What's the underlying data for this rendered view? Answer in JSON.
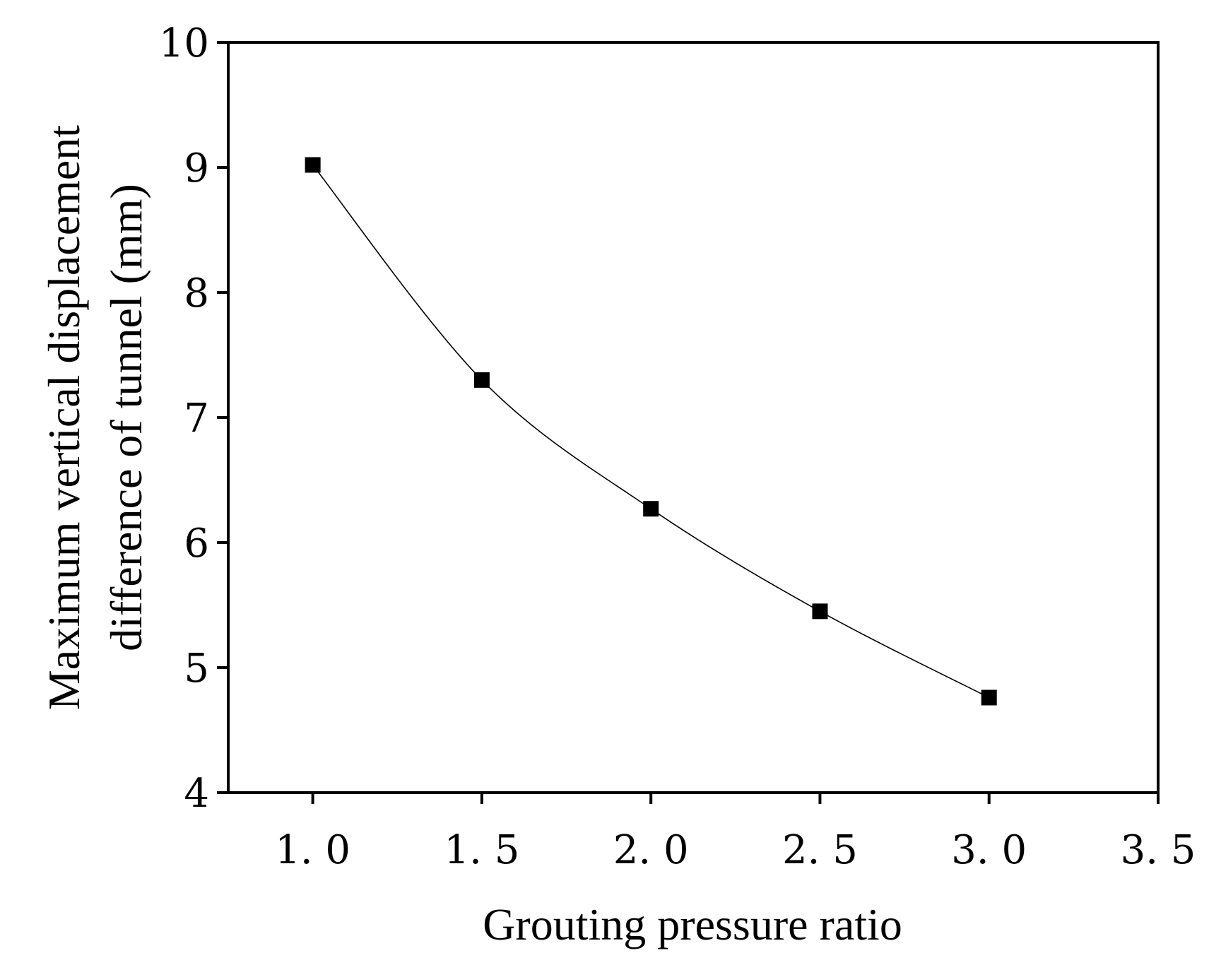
{
  "chart_data": {
    "type": "line",
    "title": "",
    "xlabel": "Grouting pressure ratio",
    "ylabel_lines": [
      "Maximum vertical displacement",
      "difference of tunnel (mm)"
    ],
    "xlim": [
      0.75,
      3.5
    ],
    "ylim": [
      4,
      10
    ],
    "x_ticks": [
      1.0,
      1.5,
      2.0,
      2.5,
      3.0,
      3.5
    ],
    "x_tick_labels": [
      "1. 0",
      "1. 5",
      "2. 0",
      "2. 5",
      "3. 0",
      "3. 5"
    ],
    "y_ticks": [
      4,
      5,
      6,
      7,
      8,
      9,
      10
    ],
    "y_tick_labels": [
      "4",
      "5",
      "6",
      "7",
      "8",
      "9",
      "10"
    ],
    "series": [
      {
        "name": "Maximum vertical displacement difference",
        "x": [
          1.0,
          1.5,
          2.0,
          2.5,
          3.0
        ],
        "y": [
          9.02,
          7.3,
          6.27,
          5.45,
          4.76
        ],
        "marker": "square",
        "line": "smooth",
        "color": "#000000"
      }
    ],
    "grid": false,
    "legend": "none"
  }
}
